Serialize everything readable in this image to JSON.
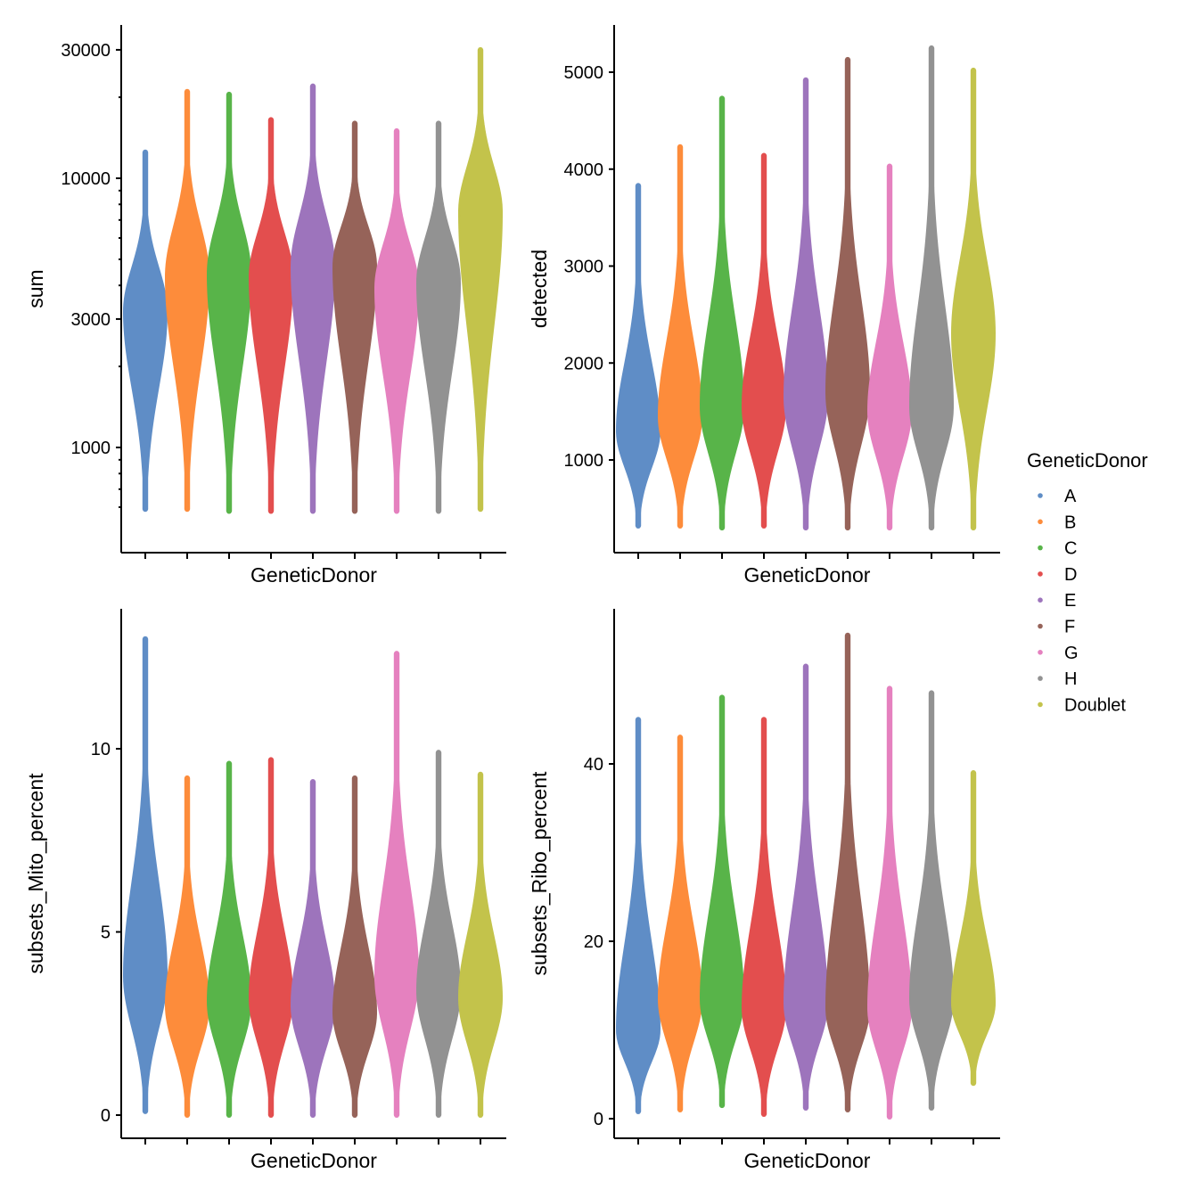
{
  "legend": {
    "title": "GeneticDonor",
    "items": [
      "A",
      "B",
      "C",
      "D",
      "E",
      "F",
      "G",
      "H",
      "Doublet"
    ],
    "colors": [
      "#5F8DC6",
      "#FD8C3B",
      "#58B449",
      "#E34E4E",
      "#9D74BC",
      "#966359",
      "#E581BF",
      "#929292",
      "#C3C34B"
    ]
  },
  "chart_data": [
    {
      "type": "violin",
      "xlabel": "GeneticDonor",
      "ylabel": "sum",
      "yscale": "log",
      "ylim": [
        500,
        40000
      ],
      "yticks": [
        1000,
        3000,
        10000,
        30000
      ],
      "categories": [
        "A",
        "B",
        "C",
        "D",
        "E",
        "F",
        "G",
        "H",
        "Doublet"
      ],
      "min": [
        590,
        590,
        580,
        580,
        580,
        580,
        580,
        580,
        590
      ],
      "median": [
        3200,
        4300,
        4400,
        4300,
        4700,
        4700,
        3900,
        4100,
        7500
      ],
      "max": [
        12500,
        21000,
        20500,
        16500,
        22000,
        16000,
        15000,
        16000,
        30000
      ]
    },
    {
      "type": "violin",
      "xlabel": "GeneticDonor",
      "ylabel": "detected",
      "yscale": "linear",
      "ylim": [
        250,
        5500
      ],
      "yticks": [
        1000,
        2000,
        3000,
        4000,
        5000
      ],
      "categories": [
        "A",
        "B",
        "C",
        "D",
        "E",
        "F",
        "G",
        "H",
        "Doublet"
      ],
      "min": [
        320,
        320,
        300,
        320,
        300,
        300,
        300,
        300,
        300
      ],
      "median": [
        1300,
        1450,
        1550,
        1550,
        1650,
        1700,
        1500,
        1550,
        2300
      ],
      "max": [
        3830,
        4230,
        4730,
        4140,
        4920,
        5130,
        4030,
        5250,
        5020
      ]
    },
    {
      "type": "violin",
      "xlabel": "GeneticDonor",
      "ylabel": "subsets_Mito_percent",
      "yscale": "linear",
      "ylim": [
        -0.6,
        13.8
      ],
      "yticks": [
        0,
        5,
        10
      ],
      "categories": [
        "A",
        "B",
        "C",
        "D",
        "E",
        "F",
        "G",
        "H",
        "Doublet"
      ],
      "min": [
        0.1,
        0,
        0,
        0,
        0,
        0,
        0,
        0,
        0
      ],
      "median": [
        3.8,
        3.0,
        3.1,
        3.2,
        3.0,
        2.8,
        3.8,
        3.4,
        3.2
      ],
      "max": [
        13.0,
        9.2,
        9.6,
        9.7,
        9.1,
        9.2,
        12.6,
        9.9,
        9.3
      ]
    },
    {
      "type": "violin",
      "xlabel": "GeneticDonor",
      "ylabel": "subsets_Ribo_percent",
      "yscale": "linear",
      "ylim": [
        -2.2,
        57
      ],
      "yticks": [
        0,
        20,
        40
      ],
      "categories": [
        "A",
        "B",
        "C",
        "D",
        "E",
        "F",
        "G",
        "H",
        "Doublet"
      ],
      "min": [
        0.8,
        1.0,
        1.5,
        0.5,
        1.2,
        1.0,
        0.2,
        1.2,
        4.0
      ],
      "median": [
        10,
        13.5,
        13.5,
        12.5,
        13,
        12.5,
        12.5,
        13.5,
        13
      ],
      "max": [
        45,
        43,
        47.5,
        45,
        51,
        54.5,
        48.5,
        48,
        39
      ]
    }
  ]
}
